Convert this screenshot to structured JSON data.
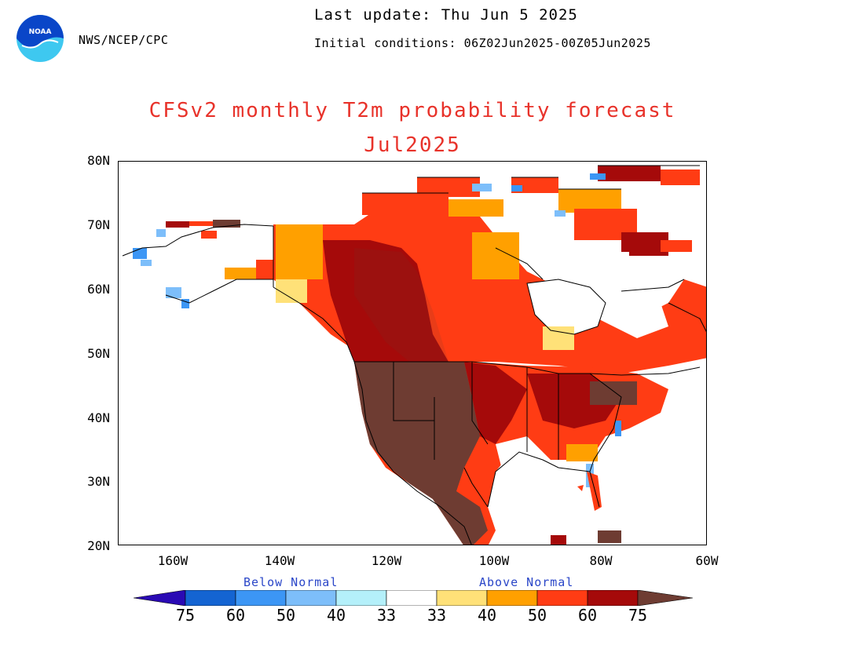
{
  "header": {
    "agency": "NWS/NCEP/CPC",
    "last_update": "Last update: Thu Jun  5 2025",
    "initial_conditions": "Initial conditions: 06Z02Jun2025-00Z05Jun2025"
  },
  "logo": {
    "text": "NOAA",
    "colors": {
      "outer": "#0a46c8",
      "inner": "#3ec8f0"
    }
  },
  "title": "CFSv2 monthly T2m probability forecast",
  "subtitle": "Jul2025",
  "map": {
    "lat_labels": [
      "80N",
      "70N",
      "60N",
      "50N",
      "40N",
      "30N",
      "20N"
    ],
    "lon_labels": [
      "160W",
      "140W",
      "120W",
      "100W",
      "80W",
      "60W"
    ],
    "extent": {
      "lon_min": -170,
      "lon_max": -60,
      "lat_min": 20,
      "lat_max": 80
    },
    "dominant_signal": "Above normal temperatures over most of North America; strongest (>75%) over western and central United States and Mexico; near-normal/white over interior Alaska, Hudson Bay and parts of Quebec; small below-normal patches in western Alaska, Canadian Arctic islands and the US East Coast."
  },
  "legend": {
    "below_label": "Below Normal",
    "above_label": "Above Normal",
    "values": [
      "75",
      "60",
      "50",
      "40",
      "33",
      "33",
      "40",
      "50",
      "60",
      "75"
    ],
    "colors": {
      "below_75": "#2a0ab4",
      "below_60": "#1464d2",
      "below_50": "#3c96f5",
      "below_40": "#7dbefa",
      "below_33": "#b4f0fa",
      "normal": "#ffffff",
      "above_33": "#ffe178",
      "above_40": "#ffa000",
      "above_50": "#ff3c14",
      "above_60": "#a50a0a",
      "above_75": "#6e3c32"
    }
  }
}
